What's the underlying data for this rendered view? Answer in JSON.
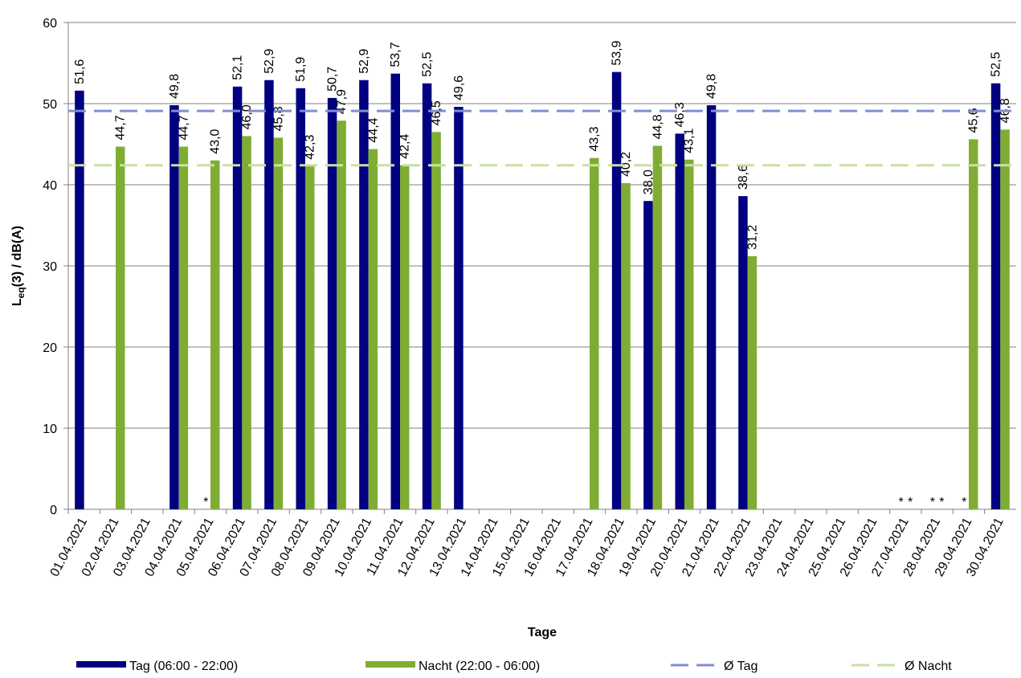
{
  "chart_data": {
    "type": "bar",
    "xlabel": "Tage",
    "ylabel": {
      "main": "L",
      "sub": "eq",
      "rest": "(3) / dB(A)"
    },
    "categories": [
      "01.04.2021",
      "02.04.2021",
      "03.04.2021",
      "04.04.2021",
      "05.04.2021",
      "06.04.2021",
      "07.04.2021",
      "08.04.2021",
      "09.04.2021",
      "10.04.2021",
      "11.04.2021",
      "12.04.2021",
      "13.04.2021",
      "14.04.2021",
      "15.04.2021",
      "16.04.2021",
      "17.04.2021",
      "18.04.2021",
      "19.04.2021",
      "20.04.2021",
      "21.04.2021",
      "22.04.2021",
      "23.04.2021",
      "24.04.2021",
      "25.04.2021",
      "26.04.2021",
      "27.04.2021",
      "28.04.2021",
      "29.04.2021",
      "30.04.2021"
    ],
    "series": [
      {
        "name": "Tag (06:00 - 22:00)",
        "color": "#000080",
        "label_color": "#1c1ca0",
        "values": [
          51.6,
          null,
          null,
          49.8,
          null,
          52.1,
          52.9,
          51.9,
          50.7,
          52.9,
          53.7,
          52.5,
          49.6,
          null,
          null,
          null,
          null,
          53.9,
          38.0,
          46.3,
          49.8,
          38.6,
          null,
          null,
          null,
          null,
          null,
          null,
          null,
          52.5
        ],
        "value_labels": [
          "51,6",
          null,
          null,
          "49,8",
          "*",
          "52,1",
          "52,9",
          "51,9",
          "50,7",
          "52,9",
          "53,7",
          "52,5",
          "49,6",
          null,
          null,
          null,
          null,
          "53,9",
          "38,0",
          "46,3",
          "49,8",
          "38,6",
          null,
          null,
          null,
          null,
          "*",
          "*",
          "*",
          "52,5"
        ]
      },
      {
        "name": "Nacht (22:00 - 06:00)",
        "color": "#7fad34",
        "label_color": "#8cbf3f",
        "values": [
          null,
          44.7,
          null,
          44.7,
          43.0,
          46.0,
          45.8,
          42.3,
          47.9,
          44.4,
          42.4,
          46.5,
          null,
          null,
          null,
          null,
          43.3,
          40.2,
          44.8,
          43.1,
          null,
          31.2,
          null,
          null,
          null,
          null,
          null,
          null,
          45.6,
          46.8
        ],
        "value_labels": [
          null,
          "44,7",
          null,
          "44,7",
          "43,0",
          "46,0",
          "45,8",
          "42,3",
          "47,9",
          "44,4",
          "42,4",
          "46,5",
          null,
          null,
          null,
          null,
          "43,3",
          "40,2",
          "44,8",
          "43,1",
          null,
          "31,2",
          null,
          null,
          null,
          null,
          "*",
          "*",
          "45,6",
          "46,8"
        ]
      }
    ],
    "reference_lines": [
      {
        "name": "Ø Tag",
        "color": "#7f8fd0",
        "value": 49.1
      },
      {
        "name": "Ø Nacht",
        "color": "#c9e1a3",
        "value": 42.4
      }
    ],
    "ylim": [
      0,
      60
    ],
    "yticks": [
      0,
      10,
      20,
      30,
      40,
      50,
      60
    ],
    "grid": true
  }
}
